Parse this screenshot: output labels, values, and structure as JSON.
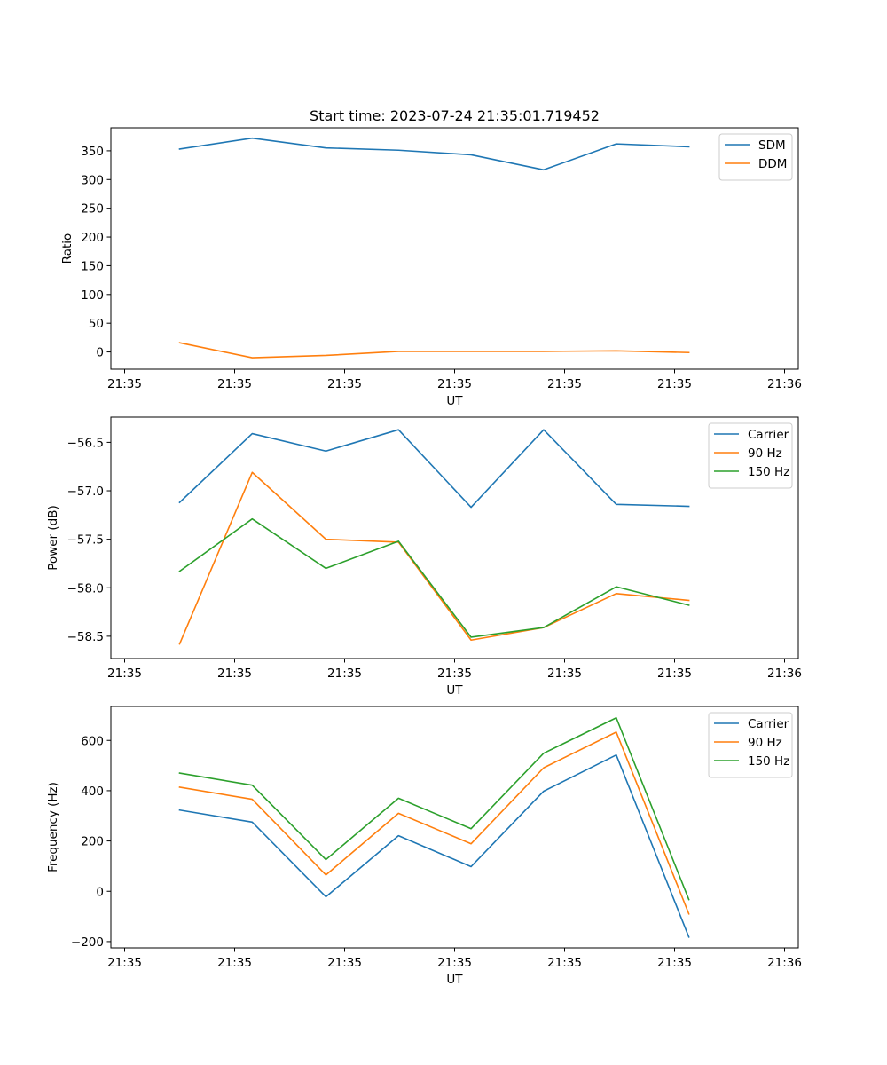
{
  "figure": {
    "title": "Start time: 2023-07-24 21:35:01.719452"
  },
  "colors": {
    "blue": "#1f77b4",
    "orange": "#ff7f0e",
    "green": "#2ca02c"
  },
  "chart_data": [
    {
      "type": "line",
      "title": "Start time: 2023-07-24 21:35:01.719452",
      "xlabel": "UT",
      "ylabel": "Ratio",
      "x_tick_labels": [
        "21:35",
        "21:35",
        "21:35",
        "21:35",
        "21:35",
        "21:35",
        "21:36"
      ],
      "xlim": [
        -0.125,
        6.125
      ],
      "x": [
        0.5,
        1.16,
        1.83,
        2.49,
        3.15,
        3.81,
        4.47,
        5.13
      ],
      "yticks": [
        0,
        50,
        100,
        150,
        200,
        250,
        300,
        350
      ],
      "ylim": [
        -30,
        390
      ],
      "legend": "upper right",
      "grid": false,
      "series": [
        {
          "name": "SDM",
          "color": "blue",
          "values": [
            353,
            372,
            355,
            351,
            343,
            317,
            362,
            357
          ]
        },
        {
          "name": "DDM",
          "color": "orange",
          "values": [
            16,
            -10,
            -6,
            1,
            1,
            1,
            2,
            -1
          ]
        }
      ]
    },
    {
      "type": "line",
      "xlabel": "UT",
      "ylabel": "Power (dB)",
      "x_tick_labels": [
        "21:35",
        "21:35",
        "21:35",
        "21:35",
        "21:35",
        "21:35",
        "21:36"
      ],
      "xlim": [
        -0.125,
        6.125
      ],
      "x": [
        0.5,
        1.16,
        1.83,
        2.49,
        3.15,
        3.81,
        4.47,
        5.13
      ],
      "yticks": [
        -58.5,
        -58.0,
        -57.5,
        -57.0,
        -56.5
      ],
      "ytick_labels": [
        "−58.5",
        "−58.0",
        "−57.5",
        "−57.0",
        "−56.5"
      ],
      "ylim": [
        -58.73,
        -56.24
      ],
      "legend": "upper right",
      "grid": false,
      "series": [
        {
          "name": "Carrier",
          "color": "blue",
          "values": [
            -57.12,
            -56.41,
            -56.59,
            -56.37,
            -57.17,
            -56.37,
            -57.14,
            -57.16
          ]
        },
        {
          "name": "90 Hz",
          "color": "orange",
          "values": [
            -58.58,
            -56.81,
            -57.5,
            -57.53,
            -58.54,
            -58.41,
            -58.06,
            -58.13
          ]
        },
        {
          "name": "150 Hz",
          "color": "green",
          "values": [
            -57.83,
            -57.29,
            -57.8,
            -57.52,
            -58.51,
            -58.41,
            -57.99,
            -58.18
          ]
        }
      ]
    },
    {
      "type": "line",
      "xlabel": "UT",
      "ylabel": "Frequency (Hz)",
      "x_tick_labels": [
        "21:35",
        "21:35",
        "21:35",
        "21:35",
        "21:35",
        "21:35",
        "21:36"
      ],
      "xlim": [
        -0.125,
        6.125
      ],
      "x": [
        0.5,
        1.16,
        1.83,
        2.49,
        3.15,
        3.81,
        4.47,
        5.13
      ],
      "yticks": [
        -200,
        0,
        200,
        400,
        600
      ],
      "ytick_labels": [
        "−200",
        "0",
        "200",
        "400",
        "600"
      ],
      "ylim": [
        -225,
        735
      ],
      "legend": "upper right",
      "grid": false,
      "series": [
        {
          "name": "Carrier",
          "color": "blue",
          "values": [
            323,
            275,
            -22,
            221,
            98,
            398,
            542,
            -182
          ]
        },
        {
          "name": "90 Hz",
          "color": "orange",
          "values": [
            414,
            366,
            65,
            310,
            189,
            491,
            633,
            -90
          ]
        },
        {
          "name": "150 Hz",
          "color": "green",
          "values": [
            470,
            422,
            126,
            370,
            249,
            549,
            690,
            -33
          ]
        }
      ]
    }
  ]
}
